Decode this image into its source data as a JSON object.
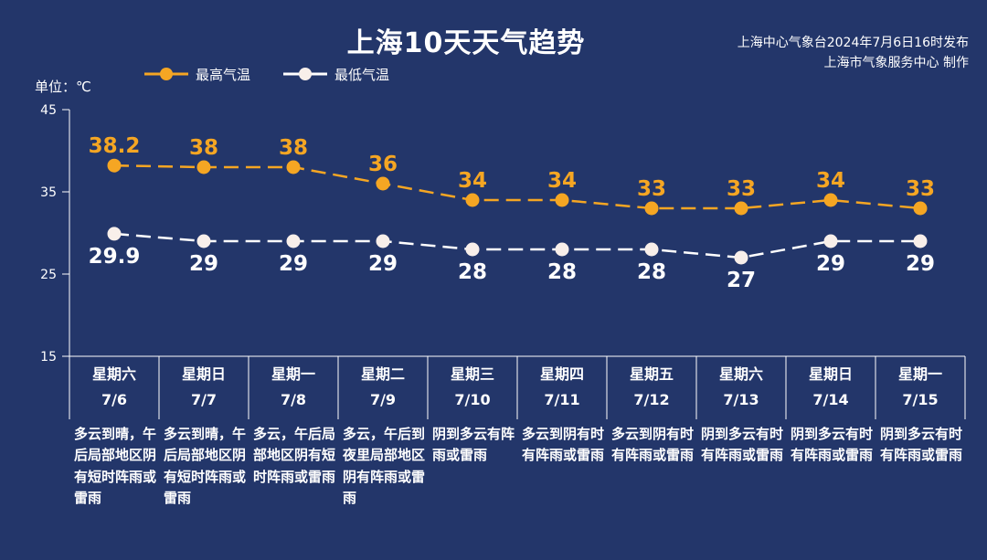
{
  "title": "上海10天天气趋势",
  "source": {
    "issued": "上海中心气象台2024年7月6日16时发布",
    "produced": "上海市气象服务中心 制作"
  },
  "colors": {
    "background": "#23366a",
    "high": "#f5a623",
    "low": "#ffffff"
  },
  "chart_data": {
    "type": "line",
    "unit_label": "单位：℃",
    "ylim": [
      15,
      45
    ],
    "yticks": [
      "45",
      "35",
      "25",
      "15"
    ],
    "legend_position": "top-left",
    "grid": false,
    "categories": [
      {
        "weekday": "星期六",
        "date": "7/6",
        "desc": "多云到晴，午后局部地区阴有短时阵雨或雷雨"
      },
      {
        "weekday": "星期日",
        "date": "7/7",
        "desc": "多云到晴，午后局部地区阴有短时阵雨或雷雨"
      },
      {
        "weekday": "星期一",
        "date": "7/8",
        "desc": "多云，午后局部地区阴有短时阵雨或雷雨"
      },
      {
        "weekday": "星期二",
        "date": "7/9",
        "desc": "多云，午后到夜里局部地区阴有阵雨或雷雨"
      },
      {
        "weekday": "星期三",
        "date": "7/10",
        "desc": "阴到多云有阵雨或雷雨"
      },
      {
        "weekday": "星期四",
        "date": "7/11",
        "desc": "多云到阴有时有阵雨或雷雨"
      },
      {
        "weekday": "星期五",
        "date": "7/12",
        "desc": "多云到阴有时有阵雨或雷雨"
      },
      {
        "weekday": "星期六",
        "date": "7/13",
        "desc": "阴到多云有时有阵雨或雷雨"
      },
      {
        "weekday": "星期日",
        "date": "7/14",
        "desc": "阴到多云有时有阵雨或雷雨"
      },
      {
        "weekday": "星期一",
        "date": "7/15",
        "desc": "阴到多云有时有阵雨或雷雨"
      }
    ],
    "series": [
      {
        "name": "最高气温",
        "values": [
          38.2,
          38,
          38,
          36,
          34,
          34,
          33,
          33,
          34,
          33
        ],
        "labels": [
          "38.2",
          "38",
          "38",
          "36",
          "34",
          "34",
          "33",
          "33",
          "34",
          "33"
        ]
      },
      {
        "name": "最低气温",
        "values": [
          29.9,
          29,
          29,
          29,
          28,
          28,
          28,
          27,
          29,
          29
        ],
        "labels": [
          "29.9",
          "29",
          "29",
          "29",
          "28",
          "28",
          "28",
          "27",
          "29",
          "29"
        ]
      }
    ]
  }
}
